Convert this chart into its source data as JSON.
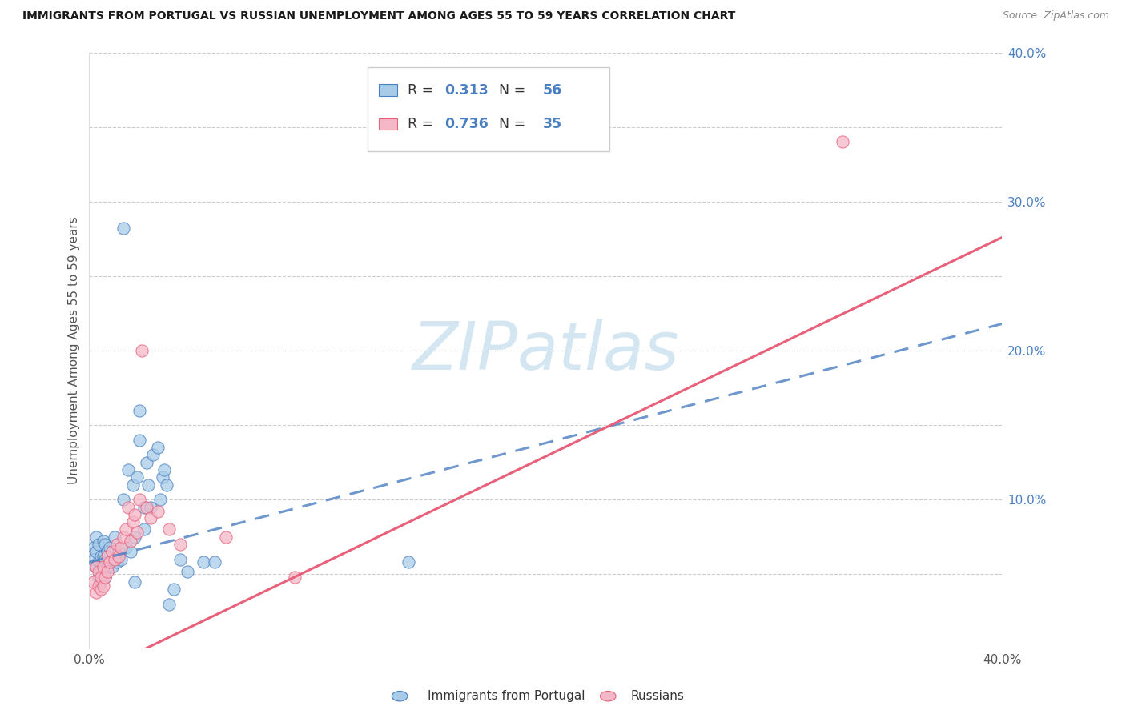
{
  "title": "IMMIGRANTS FROM PORTUGAL VS RUSSIAN UNEMPLOYMENT AMONG AGES 55 TO 59 YEARS CORRELATION CHART",
  "source": "Source: ZipAtlas.com",
  "ylabel": "Unemployment Among Ages 55 to 59 years",
  "xlim": [
    0.0,
    0.4
  ],
  "ylim": [
    0.0,
    0.4
  ],
  "x_ticks": [
    0.0,
    0.05,
    0.1,
    0.15,
    0.2,
    0.25,
    0.3,
    0.35,
    0.4
  ],
  "y_ticks": [
    0.0,
    0.05,
    0.1,
    0.15,
    0.2,
    0.25,
    0.3,
    0.35,
    0.4
  ],
  "blue_R": 0.313,
  "blue_N": 56,
  "pink_R": 0.736,
  "pink_N": 35,
  "blue_color": "#a8cce8",
  "pink_color": "#f5b8c8",
  "blue_line_color": "#4a7fc1",
  "pink_line_color": "#e8607a",
  "watermark_color": "#d0e4f0",
  "blue_intercept": 0.058,
  "blue_slope": 0.4,
  "pink_intercept": -0.018,
  "pink_slope": 0.735,
  "blue_points": [
    [
      0.002,
      0.06
    ],
    [
      0.002,
      0.068
    ],
    [
      0.003,
      0.055
    ],
    [
      0.003,
      0.065
    ],
    [
      0.003,
      0.075
    ],
    [
      0.004,
      0.048
    ],
    [
      0.004,
      0.058
    ],
    [
      0.004,
      0.07
    ],
    [
      0.005,
      0.045
    ],
    [
      0.005,
      0.055
    ],
    [
      0.005,
      0.062
    ],
    [
      0.006,
      0.052
    ],
    [
      0.006,
      0.062
    ],
    [
      0.006,
      0.072
    ],
    [
      0.007,
      0.048
    ],
    [
      0.007,
      0.06
    ],
    [
      0.007,
      0.07
    ],
    [
      0.008,
      0.055
    ],
    [
      0.008,
      0.065
    ],
    [
      0.009,
      0.058
    ],
    [
      0.009,
      0.068
    ],
    [
      0.01,
      0.055
    ],
    [
      0.01,
      0.065
    ],
    [
      0.011,
      0.075
    ],
    [
      0.012,
      0.058
    ],
    [
      0.013,
      0.065
    ],
    [
      0.014,
      0.06
    ],
    [
      0.015,
      0.1
    ],
    [
      0.015,
      0.282
    ],
    [
      0.016,
      0.068
    ],
    [
      0.017,
      0.12
    ],
    [
      0.018,
      0.065
    ],
    [
      0.019,
      0.11
    ],
    [
      0.02,
      0.075
    ],
    [
      0.021,
      0.115
    ],
    [
      0.022,
      0.14
    ],
    [
      0.022,
      0.16
    ],
    [
      0.024,
      0.08
    ],
    [
      0.024,
      0.095
    ],
    [
      0.025,
      0.125
    ],
    [
      0.026,
      0.11
    ],
    [
      0.027,
      0.095
    ],
    [
      0.028,
      0.13
    ],
    [
      0.03,
      0.135
    ],
    [
      0.031,
      0.1
    ],
    [
      0.032,
      0.115
    ],
    [
      0.033,
      0.12
    ],
    [
      0.034,
      0.11
    ],
    [
      0.035,
      0.03
    ],
    [
      0.037,
      0.04
    ],
    [
      0.04,
      0.06
    ],
    [
      0.043,
      0.052
    ],
    [
      0.05,
      0.058
    ],
    [
      0.055,
      0.058
    ],
    [
      0.14,
      0.058
    ],
    [
      0.02,
      0.045
    ]
  ],
  "pink_points": [
    [
      0.002,
      0.045
    ],
    [
      0.003,
      0.038
    ],
    [
      0.003,
      0.055
    ],
    [
      0.004,
      0.042
    ],
    [
      0.004,
      0.052
    ],
    [
      0.005,
      0.04
    ],
    [
      0.005,
      0.048
    ],
    [
      0.006,
      0.042
    ],
    [
      0.006,
      0.055
    ],
    [
      0.007,
      0.048
    ],
    [
      0.008,
      0.052
    ],
    [
      0.008,
      0.062
    ],
    [
      0.009,
      0.058
    ],
    [
      0.01,
      0.065
    ],
    [
      0.011,
      0.06
    ],
    [
      0.012,
      0.07
    ],
    [
      0.013,
      0.062
    ],
    [
      0.014,
      0.068
    ],
    [
      0.015,
      0.075
    ],
    [
      0.016,
      0.08
    ],
    [
      0.017,
      0.095
    ],
    [
      0.018,
      0.072
    ],
    [
      0.019,
      0.085
    ],
    [
      0.02,
      0.09
    ],
    [
      0.021,
      0.078
    ],
    [
      0.022,
      0.1
    ],
    [
      0.023,
      0.2
    ],
    [
      0.025,
      0.095
    ],
    [
      0.027,
      0.088
    ],
    [
      0.03,
      0.092
    ],
    [
      0.035,
      0.08
    ],
    [
      0.04,
      0.07
    ],
    [
      0.06,
      0.075
    ],
    [
      0.09,
      0.048
    ],
    [
      0.33,
      0.34
    ]
  ]
}
